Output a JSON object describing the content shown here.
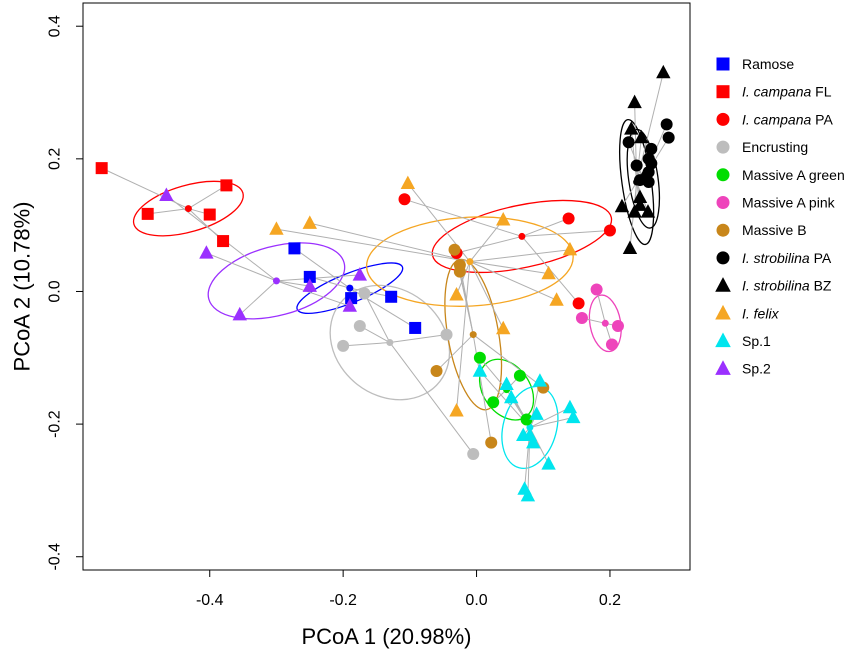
{
  "chart_data": {
    "type": "scatter",
    "title": "",
    "xlabel": "PCoA 1 (20.98%)",
    "ylabel": "PCoA 2 (10.78%)",
    "xlim": [
      -0.59,
      0.32
    ],
    "ylim": [
      -0.42,
      0.435
    ],
    "xticks": [
      -0.4,
      -0.2,
      0.0,
      0.2
    ],
    "xtick_labels": [
      "-0.4",
      "-0.2",
      "0.0",
      "0.2"
    ],
    "yticks": [
      -0.4,
      -0.2,
      0.0,
      0.2,
      0.4
    ],
    "ytick_labels": [
      "-0.4",
      "-0.2",
      "0.0",
      "0.2",
      "0.4"
    ],
    "grid": false,
    "legend_position": "right",
    "series": [
      {
        "name": "Ramose",
        "name_main": "Ramose",
        "name_suffix": "",
        "italic": false,
        "color": "#0000ff",
        "marker": "square",
        "centroid": [
          -0.19,
          0.005
        ],
        "ellipse": {
          "cx": -0.19,
          "cy": 0.005,
          "rx": 0.085,
          "ry": 0.022,
          "angle_deg": -22
        },
        "points": [
          [
            -0.273,
            0.065
          ],
          [
            -0.25,
            0.022
          ],
          [
            -0.128,
            -0.008
          ],
          [
            -0.188,
            -0.01
          ],
          [
            -0.092,
            -0.055
          ]
        ]
      },
      {
        "name": "I. campana FL",
        "name_main": "I. campana",
        "name_suffix": " FL",
        "italic": true,
        "color": "#ff0000",
        "marker": "square",
        "centroid": [
          -0.432,
          0.125
        ],
        "ellipse": {
          "cx": -0.432,
          "cy": 0.125,
          "rx": 0.085,
          "ry": 0.035,
          "angle_deg": -16
        },
        "points": [
          [
            -0.562,
            0.186
          ],
          [
            -0.375,
            0.16
          ],
          [
            -0.4,
            0.116
          ],
          [
            -0.493,
            0.117
          ],
          [
            -0.38,
            0.076
          ]
        ]
      },
      {
        "name": "I. campana PA",
        "name_main": "I. campana",
        "name_suffix": " PA",
        "italic": true,
        "color": "#ff0000",
        "marker": "circle",
        "centroid": [
          0.068,
          0.083
        ],
        "ellipse": {
          "cx": 0.068,
          "cy": 0.083,
          "rx": 0.137,
          "ry": 0.047,
          "angle_deg": -12
        },
        "points": [
          [
            -0.108,
            0.139
          ],
          [
            0.138,
            0.11
          ],
          [
            0.2,
            0.092
          ],
          [
            -0.03,
            0.058
          ],
          [
            0.153,
            -0.018
          ]
        ]
      },
      {
        "name": "Encrusting",
        "name_main": "Encrusting",
        "name_suffix": "",
        "italic": false,
        "color": "#bdbdbd",
        "marker": "circle",
        "centroid": [
          -0.13,
          -0.077
        ],
        "ellipse": {
          "cx": -0.13,
          "cy": -0.077,
          "rx": 0.095,
          "ry": 0.08,
          "angle_deg": 38
        },
        "points": [
          [
            -0.168,
            -0.003
          ],
          [
            -0.175,
            -0.052
          ],
          [
            -0.2,
            -0.082
          ],
          [
            -0.045,
            -0.065
          ],
          [
            -0.005,
            -0.245
          ]
        ]
      },
      {
        "name": "Massive A green",
        "name_main": "Massive A green",
        "name_suffix": "",
        "italic": false,
        "color": "#00dd00",
        "marker": "circle",
        "centroid": [
          0.045,
          -0.148
        ],
        "ellipse": {
          "cx": 0.045,
          "cy": -0.148,
          "rx": 0.035,
          "ry": 0.05,
          "angle_deg": -35
        },
        "points": [
          [
            0.005,
            -0.1
          ],
          [
            0.065,
            -0.127
          ],
          [
            0.025,
            -0.167
          ],
          [
            0.075,
            -0.193
          ]
        ]
      },
      {
        "name": "Massive A pink",
        "name_main": "Massive A pink",
        "name_suffix": "",
        "italic": false,
        "color": "#ee44bb",
        "marker": "circle",
        "centroid": [
          0.193,
          -0.048
        ],
        "ellipse": {
          "cx": 0.193,
          "cy": -0.048,
          "rx": 0.023,
          "ry": 0.043,
          "angle_deg": -10
        },
        "points": [
          [
            0.18,
            0.003
          ],
          [
            0.158,
            -0.04
          ],
          [
            0.212,
            -0.052
          ],
          [
            0.203,
            -0.08
          ]
        ]
      },
      {
        "name": "Massive B",
        "name_main": "Massive B",
        "name_suffix": "",
        "italic": false,
        "color": "#c8861a",
        "marker": "circle",
        "centroid": [
          -0.005,
          -0.065
        ],
        "ellipse": {
          "cx": -0.005,
          "cy": -0.065,
          "rx": 0.038,
          "ry": 0.115,
          "angle_deg": -10
        },
        "points": [
          [
            -0.033,
            0.063
          ],
          [
            -0.025,
            0.04
          ],
          [
            -0.025,
            0.03
          ],
          [
            -0.06,
            -0.12
          ],
          [
            0.1,
            -0.145
          ],
          [
            0.022,
            -0.228
          ]
        ]
      },
      {
        "name": "I. strobilina PA",
        "name_main": "I. strobilina",
        "name_suffix": " PA",
        "italic": true,
        "color": "#000000",
        "marker": "circle",
        "centroid": [
          0.25,
          0.17
        ],
        "ellipse": {
          "cx": 0.25,
          "cy": 0.17,
          "rx": 0.022,
          "ry": 0.075,
          "angle_deg": -8
        },
        "points": [
          [
            0.285,
            0.252
          ],
          [
            0.288,
            0.232
          ],
          [
            0.228,
            0.225
          ],
          [
            0.262,
            0.215
          ],
          [
            0.258,
            0.2
          ],
          [
            0.262,
            0.193
          ],
          [
            0.24,
            0.19
          ],
          [
            0.258,
            0.18
          ],
          [
            0.245,
            0.168
          ],
          [
            0.258,
            0.165
          ]
        ]
      },
      {
        "name": "I. strobilina BZ",
        "name_main": "I. strobilina",
        "name_suffix": " BZ",
        "italic": true,
        "color": "#000000",
        "marker": "triangle",
        "centroid": [
          0.24,
          0.165
        ],
        "ellipse": {
          "cx": 0.24,
          "cy": 0.165,
          "rx": 0.022,
          "ry": 0.095,
          "angle_deg": -8
        },
        "points": [
          [
            0.28,
            0.33
          ],
          [
            0.237,
            0.285
          ],
          [
            0.232,
            0.245
          ],
          [
            0.247,
            0.232
          ],
          [
            0.252,
            0.175
          ],
          [
            0.245,
            0.142
          ],
          [
            0.245,
            0.13
          ],
          [
            0.218,
            0.128
          ],
          [
            0.237,
            0.12
          ],
          [
            0.257,
            0.12
          ],
          [
            0.23,
            0.065
          ]
        ]
      },
      {
        "name": "I. felix",
        "name_main": "I. felix",
        "name_suffix": "",
        "italic": true,
        "color": "#f5a623",
        "marker": "triangle",
        "centroid": [
          -0.01,
          0.045
        ],
        "ellipse": {
          "cx": -0.01,
          "cy": 0.045,
          "rx": 0.155,
          "ry": 0.067,
          "angle_deg": -3
        },
        "points": [
          [
            -0.103,
            0.163
          ],
          [
            0.04,
            0.108
          ],
          [
            -0.3,
            0.094
          ],
          [
            -0.25,
            0.103
          ],
          [
            0.14,
            0.063
          ],
          [
            0.108,
            0.027
          ],
          [
            0.12,
            -0.013
          ],
          [
            -0.03,
            -0.005
          ],
          [
            0.04,
            -0.056
          ],
          [
            -0.03,
            -0.18
          ]
        ]
      },
      {
        "name": "Sp.1",
        "name_main": "Sp.1",
        "name_suffix": "",
        "italic": false,
        "color": "#00e5ee",
        "marker": "triangle",
        "centroid": [
          0.08,
          -0.205
        ],
        "ellipse": {
          "cx": 0.08,
          "cy": -0.205,
          "rx": 0.04,
          "ry": 0.063,
          "angle_deg": 15
        },
        "points": [
          [
            0.005,
            -0.12
          ],
          [
            0.045,
            -0.14
          ],
          [
            0.095,
            -0.135
          ],
          [
            0.052,
            -0.16
          ],
          [
            0.09,
            -0.185
          ],
          [
            0.14,
            -0.175
          ],
          [
            0.145,
            -0.19
          ],
          [
            0.07,
            -0.217
          ],
          [
            0.08,
            -0.217
          ],
          [
            0.085,
            -0.228
          ],
          [
            0.108,
            -0.26
          ],
          [
            0.072,
            -0.298
          ],
          [
            0.077,
            -0.308
          ]
        ]
      },
      {
        "name": "Sp.2",
        "name_main": "Sp.2",
        "name_suffix": "",
        "italic": false,
        "color": "#9b30ff",
        "marker": "triangle",
        "centroid": [
          -0.3,
          0.016
        ],
        "ellipse": {
          "cx": -0.3,
          "cy": 0.016,
          "rx": 0.105,
          "ry": 0.052,
          "angle_deg": -15
        },
        "points": [
          [
            -0.465,
            0.145
          ],
          [
            -0.405,
            0.058
          ],
          [
            -0.175,
            0.025
          ],
          [
            -0.25,
            0.008
          ],
          [
            -0.19,
            -0.022
          ],
          [
            -0.355,
            -0.035
          ]
        ]
      }
    ]
  }
}
